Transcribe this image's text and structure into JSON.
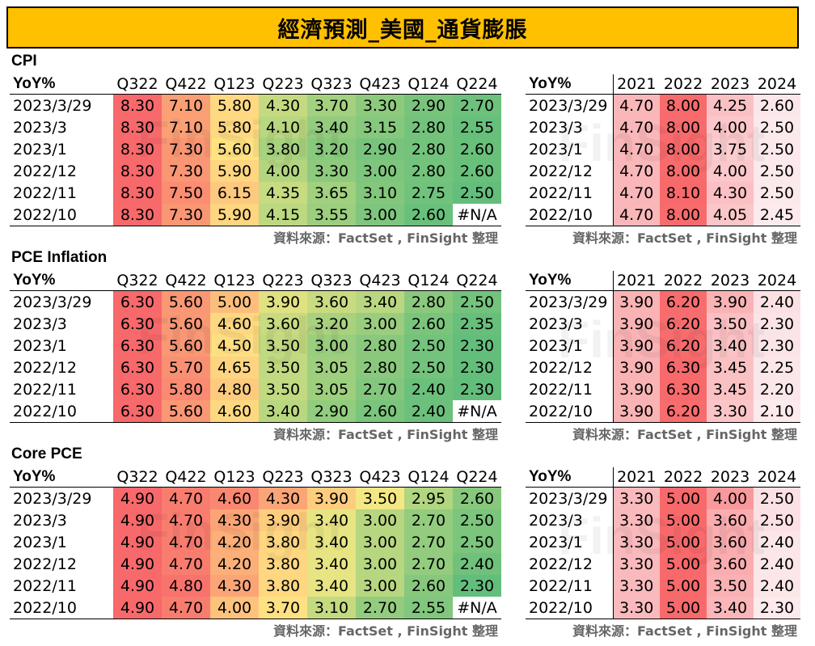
{
  "page_title": "經濟預測_美國_通貨膨脹",
  "source_note": "資料來源：FactSet , FinSight 整理",
  "watermark": "FinSight",
  "colors": {
    "title_bg": "#ffc000",
    "high": "#f8696b",
    "mid": "#ffeb84",
    "low": "#63be7b",
    "annual_high": "#f8696b",
    "annual_low": "#fcfcff"
  },
  "sections": [
    {
      "title": "CPI",
      "left": {
        "header": [
          "YoY%",
          "Q322",
          "Q422",
          "Q123",
          "Q223",
          "Q323",
          "Q423",
          "Q124",
          "Q224"
        ],
        "rows": [
          {
            "date": "2023/3/29",
            "values": [
              "8.30",
              "7.10",
              "5.80",
              "4.30",
              "3.70",
              "3.30",
              "2.90",
              "2.70"
            ]
          },
          {
            "date": "2023/3",
            "values": [
              "8.30",
              "7.10",
              "5.80",
              "4.10",
              "3.40",
              "3.15",
              "2.80",
              "2.55"
            ]
          },
          {
            "date": "2023/1",
            "values": [
              "8.30",
              "7.30",
              "5.60",
              "3.80",
              "3.20",
              "2.90",
              "2.80",
              "2.60"
            ]
          },
          {
            "date": "2022/12",
            "values": [
              "8.30",
              "7.30",
              "5.90",
              "4.00",
              "3.30",
              "3.00",
              "2.80",
              "2.60"
            ]
          },
          {
            "date": "2022/11",
            "values": [
              "8.30",
              "7.50",
              "6.15",
              "4.35",
              "3.65",
              "3.10",
              "2.75",
              "2.50"
            ]
          },
          {
            "date": "2022/10",
            "values": [
              "8.30",
              "7.30",
              "5.90",
              "4.15",
              "3.55",
              "3.00",
              "2.60",
              "#N/A"
            ]
          }
        ]
      },
      "right": {
        "header": [
          "YoY%",
          "2021",
          "2022",
          "2023",
          "2024"
        ],
        "rows": [
          {
            "date": "2023/3/29",
            "values": [
              "4.70",
              "8.00",
              "4.25",
              "2.60"
            ]
          },
          {
            "date": "2023/3",
            "values": [
              "4.70",
              "8.00",
              "4.00",
              "2.50"
            ]
          },
          {
            "date": "2023/1",
            "values": [
              "4.70",
              "8.00",
              "3.75",
              "2.50"
            ]
          },
          {
            "date": "2022/12",
            "values": [
              "4.70",
              "8.00",
              "4.00",
              "2.50"
            ]
          },
          {
            "date": "2022/11",
            "values": [
              "4.70",
              "8.10",
              "4.30",
              "2.50"
            ]
          },
          {
            "date": "2022/10",
            "values": [
              "4.70",
              "8.00",
              "4.05",
              "2.45"
            ]
          }
        ]
      }
    },
    {
      "title": "PCE Inflation",
      "left": {
        "header": [
          "YoY%",
          "Q322",
          "Q422",
          "Q123",
          "Q223",
          "Q323",
          "Q423",
          "Q124",
          "Q224"
        ],
        "rows": [
          {
            "date": "2023/3/29",
            "values": [
              "6.30",
              "5.60",
              "5.00",
              "3.90",
              "3.60",
              "3.40",
              "2.80",
              "2.50"
            ]
          },
          {
            "date": "2023/3",
            "values": [
              "6.30",
              "5.60",
              "4.60",
              "3.60",
              "3.20",
              "3.00",
              "2.60",
              "2.35"
            ]
          },
          {
            "date": "2023/1",
            "values": [
              "6.30",
              "5.60",
              "4.50",
              "3.50",
              "3.00",
              "2.80",
              "2.50",
              "2.30"
            ]
          },
          {
            "date": "2022/12",
            "values": [
              "6.30",
              "5.70",
              "4.65",
              "3.50",
              "3.05",
              "2.80",
              "2.50",
              "2.30"
            ]
          },
          {
            "date": "2022/11",
            "values": [
              "6.30",
              "5.80",
              "4.80",
              "3.50",
              "3.05",
              "2.70",
              "2.40",
              "2.30"
            ]
          },
          {
            "date": "2022/10",
            "values": [
              "6.30",
              "5.60",
              "4.60",
              "3.40",
              "2.90",
              "2.60",
              "2.40",
              "#N/A"
            ]
          }
        ]
      },
      "right": {
        "header": [
          "YoY%",
          "2021",
          "2022",
          "2023",
          "2024"
        ],
        "rows": [
          {
            "date": "2023/3/29",
            "values": [
              "3.90",
              "6.20",
              "3.90",
              "2.40"
            ]
          },
          {
            "date": "2023/3",
            "values": [
              "3.90",
              "6.20",
              "3.50",
              "2.30"
            ]
          },
          {
            "date": "2023/1",
            "values": [
              "3.90",
              "6.20",
              "3.40",
              "2.30"
            ]
          },
          {
            "date": "2022/12",
            "values": [
              "3.90",
              "6.30",
              "3.45",
              "2.25"
            ]
          },
          {
            "date": "2022/11",
            "values": [
              "3.90",
              "6.30",
              "3.45",
              "2.20"
            ]
          },
          {
            "date": "2022/10",
            "values": [
              "3.90",
              "6.20",
              "3.30",
              "2.10"
            ]
          }
        ]
      }
    },
    {
      "title": "Core PCE",
      "left": {
        "header": [
          "YoY%",
          "Q322",
          "Q422",
          "Q123",
          "Q223",
          "Q323",
          "Q423",
          "Q124",
          "Q224"
        ],
        "rows": [
          {
            "date": "2023/3/29",
            "values": [
              "4.90",
              "4.70",
              "4.60",
              "4.30",
              "3.90",
              "3.50",
              "2.95",
              "2.60"
            ]
          },
          {
            "date": "2023/3",
            "values": [
              "4.90",
              "4.70",
              "4.30",
              "3.90",
              "3.40",
              "3.00",
              "2.70",
              "2.50"
            ]
          },
          {
            "date": "2023/1",
            "values": [
              "4.90",
              "4.70",
              "4.20",
              "3.80",
              "3.40",
              "3.00",
              "2.70",
              "2.50"
            ]
          },
          {
            "date": "2022/12",
            "values": [
              "4.90",
              "4.70",
              "4.20",
              "3.80",
              "3.40",
              "3.00",
              "2.70",
              "2.40"
            ]
          },
          {
            "date": "2022/11",
            "values": [
              "4.90",
              "4.80",
              "4.30",
              "3.80",
              "3.40",
              "3.00",
              "2.60",
              "2.30"
            ]
          },
          {
            "date": "2022/10",
            "values": [
              "4.90",
              "4.70",
              "4.00",
              "3.70",
              "3.10",
              "2.70",
              "2.55",
              "#N/A"
            ]
          }
        ]
      },
      "right": {
        "header": [
          "YoY%",
          "2021",
          "2022",
          "2023",
          "2024"
        ],
        "rows": [
          {
            "date": "2023/3/29",
            "values": [
              "3.30",
              "5.00",
              "4.00",
              "2.50"
            ]
          },
          {
            "date": "2023/3",
            "values": [
              "3.30",
              "5.00",
              "3.60",
              "2.50"
            ]
          },
          {
            "date": "2023/1",
            "values": [
              "3.30",
              "5.00",
              "3.60",
              "2.40"
            ]
          },
          {
            "date": "2022/12",
            "values": [
              "3.30",
              "5.00",
              "3.60",
              "2.40"
            ]
          },
          {
            "date": "2022/11",
            "values": [
              "3.30",
              "5.00",
              "3.50",
              "2.40"
            ]
          },
          {
            "date": "2022/10",
            "values": [
              "3.30",
              "5.00",
              "3.40",
              "2.30"
            ]
          }
        ]
      }
    }
  ]
}
